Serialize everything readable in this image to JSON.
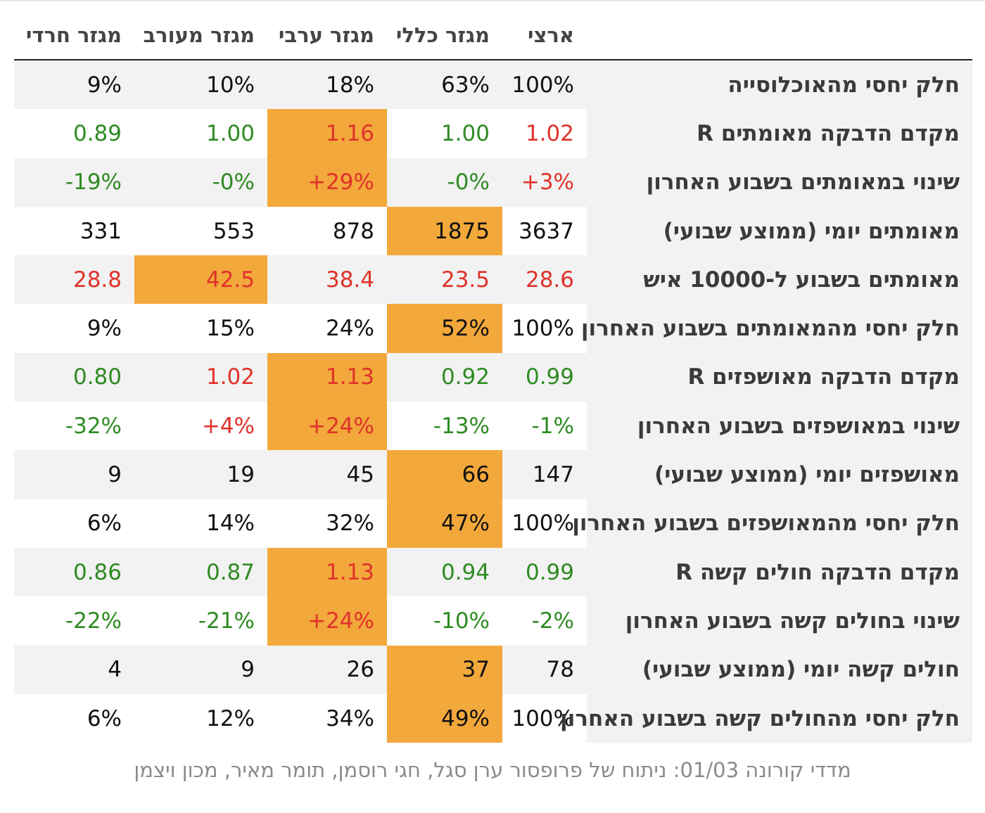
{
  "columns": {
    "haredi": "מגזר חרדי",
    "mixed": "מגזר מעורב",
    "arab": "מגזר ערבי",
    "general": "מגזר כללי",
    "national": "ארצי"
  },
  "colors": {
    "highlight": "#f2a83b",
    "red": "#e0322a",
    "green": "#2e8b22",
    "stripe": "#f2f2f2"
  },
  "rows": [
    {
      "label": "חלק יחסי מהאוכלוסייה",
      "haredi": "9%",
      "mixed": "10%",
      "arab": "18%",
      "general": "63%",
      "national": "100%"
    },
    {
      "label": "מקדם הדבקה מאומתים R",
      "haredi": "0.89",
      "mixed": "1.00",
      "arab": "1.16",
      "general": "1.00",
      "national": "1.02"
    },
    {
      "label": "שינוי במאומתים בשבוע האחרון",
      "haredi": "-19%",
      "mixed": "-0%",
      "arab": "+29%",
      "general": "-0%",
      "national": "+3%"
    },
    {
      "label": "מאומתים יומי (ממוצע שבועי)",
      "haredi": "331",
      "mixed": "553",
      "arab": "878",
      "general": "1875",
      "national": "3637"
    },
    {
      "label": "מאומתים בשבוע ל-10000 איש",
      "haredi": "28.8",
      "mixed": "42.5",
      "arab": "38.4",
      "general": "23.5",
      "national": "28.6"
    },
    {
      "label": "חלק יחסי מהמאומתים בשבוע האחרון",
      "haredi": "9%",
      "mixed": "15%",
      "arab": "24%",
      "general": "52%",
      "national": "100%"
    },
    {
      "label": "מקדם הדבקה מאושפזים R",
      "haredi": "0.80",
      "mixed": "1.02",
      "arab": "1.13",
      "general": "0.92",
      "national": "0.99"
    },
    {
      "label": "שינוי במאושפזים בשבוע האחרון",
      "haredi": "-32%",
      "mixed": "+4%",
      "arab": "+24%",
      "general": "-13%",
      "national": "-1%"
    },
    {
      "label": "מאושפזים יומי (ממוצע שבועי)",
      "haredi": "9",
      "mixed": "19",
      "arab": "45",
      "general": "66",
      "national": "147"
    },
    {
      "label": "חלק יחסי מהמאושפזים בשבוע האחרון",
      "haredi": "6%",
      "mixed": "14%",
      "arab": "32%",
      "general": "47%",
      "national": "100%"
    },
    {
      "label": "מקדם הדבקה חולים קשה R",
      "haredi": "0.86",
      "mixed": "0.87",
      "arab": "1.13",
      "general": "0.94",
      "national": "0.99"
    },
    {
      "label": "שינוי בחולים קשה בשבוע האחרון",
      "haredi": "-22%",
      "mixed": "-21%",
      "arab": "+24%",
      "general": "-10%",
      "national": "-2%"
    },
    {
      "label": "חולים קשה יומי (ממוצע שבועי)",
      "haredi": "4",
      "mixed": "9",
      "arab": "26",
      "general": "37",
      "national": "78"
    },
    {
      "label": "חלק יחסי מהחולים קשה בשבוע האחרון",
      "haredi": "6%",
      "mixed": "12%",
      "arab": "34%",
      "general": "49%",
      "national": "100%"
    }
  ],
  "caption": "מדדי קורונה 01/03: ניתוח של פרופסור ערן סגל, חגי רוסמן, תומר מאיר, מכון ויצמן"
}
